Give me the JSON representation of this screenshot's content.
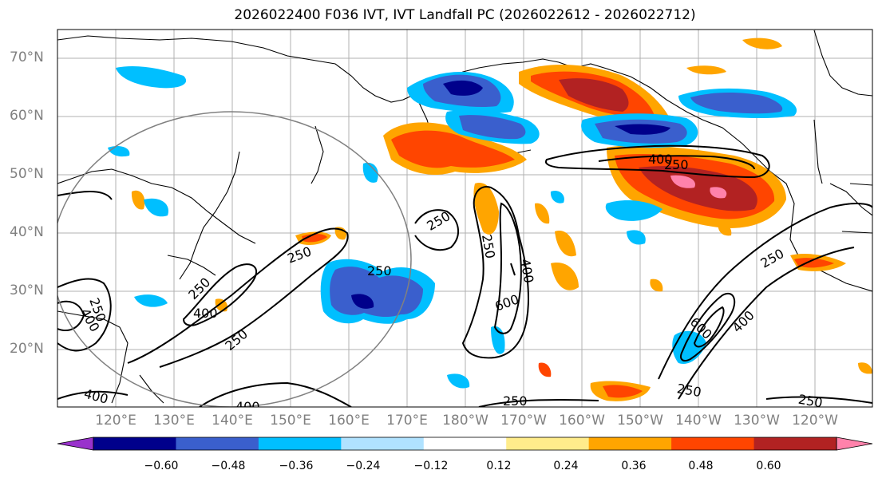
{
  "title": "2026022400 F036 IVT, IVT Landfall PC (2026022612 - 2026022712)",
  "lat_labels": [
    "70°N",
    "60°N",
    "50°N",
    "40°N",
    "30°N",
    "20°N"
  ],
  "lon_labels": [
    "120°E",
    "130°E",
    "140°E",
    "150°E",
    "160°E",
    "170°E",
    "180°W",
    "170°W",
    "160°W",
    "150°W",
    "140°W",
    "130°W",
    "120°W"
  ],
  "contour_labels": {
    "c250": "250",
    "c400": "400",
    "c600": "600"
  },
  "colorbar": {
    "ticks": [
      "−0.60",
      "−0.48",
      "−0.36",
      "−0.24",
      "−0.12",
      "0.12",
      "0.24",
      "0.36",
      "0.48",
      "0.60"
    ],
    "colors": [
      "#9932cc",
      "#00008b",
      "#3a5fcd",
      "#00bfff",
      "#b0e2ff",
      "#ffffff",
      "#ffec8b",
      "#ffa500",
      "#ff4500",
      "#b22222",
      "#ff82ab"
    ]
  }
}
